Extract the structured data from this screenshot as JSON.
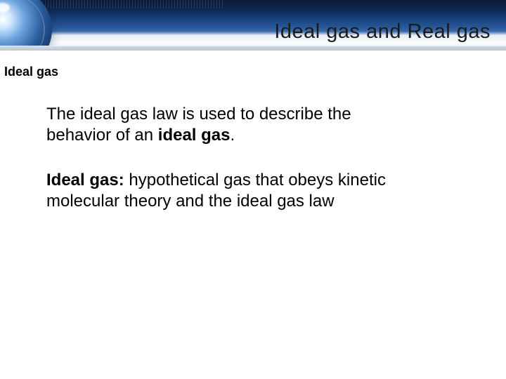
{
  "colors": {
    "banner_dark": "#0d2650",
    "banner_mid": "#2a5a9a",
    "banner_light": "#e8eef4",
    "globe_highlight": "#cfe6ff",
    "text": "#000000",
    "background": "#ffffff"
  },
  "typography": {
    "title_font": "Verdana",
    "title_size_pt": 22,
    "body_font": "Arial",
    "body_size_pt": 18,
    "subheading_size_pt": 14,
    "subheading_weight": 700
  },
  "header": {
    "title": "Ideal gas and Real gas"
  },
  "subheading": "Ideal gas",
  "body": {
    "p1_a": "The ideal gas law is used to describe the behavior of an ",
    "p1_bold": "ideal gas",
    "p1_c": ".",
    "p2_bold": "Ideal gas:",
    "p2_rest": "  hypothetical gas that obeys kinetic molecular theory and the ideal gas law"
  }
}
